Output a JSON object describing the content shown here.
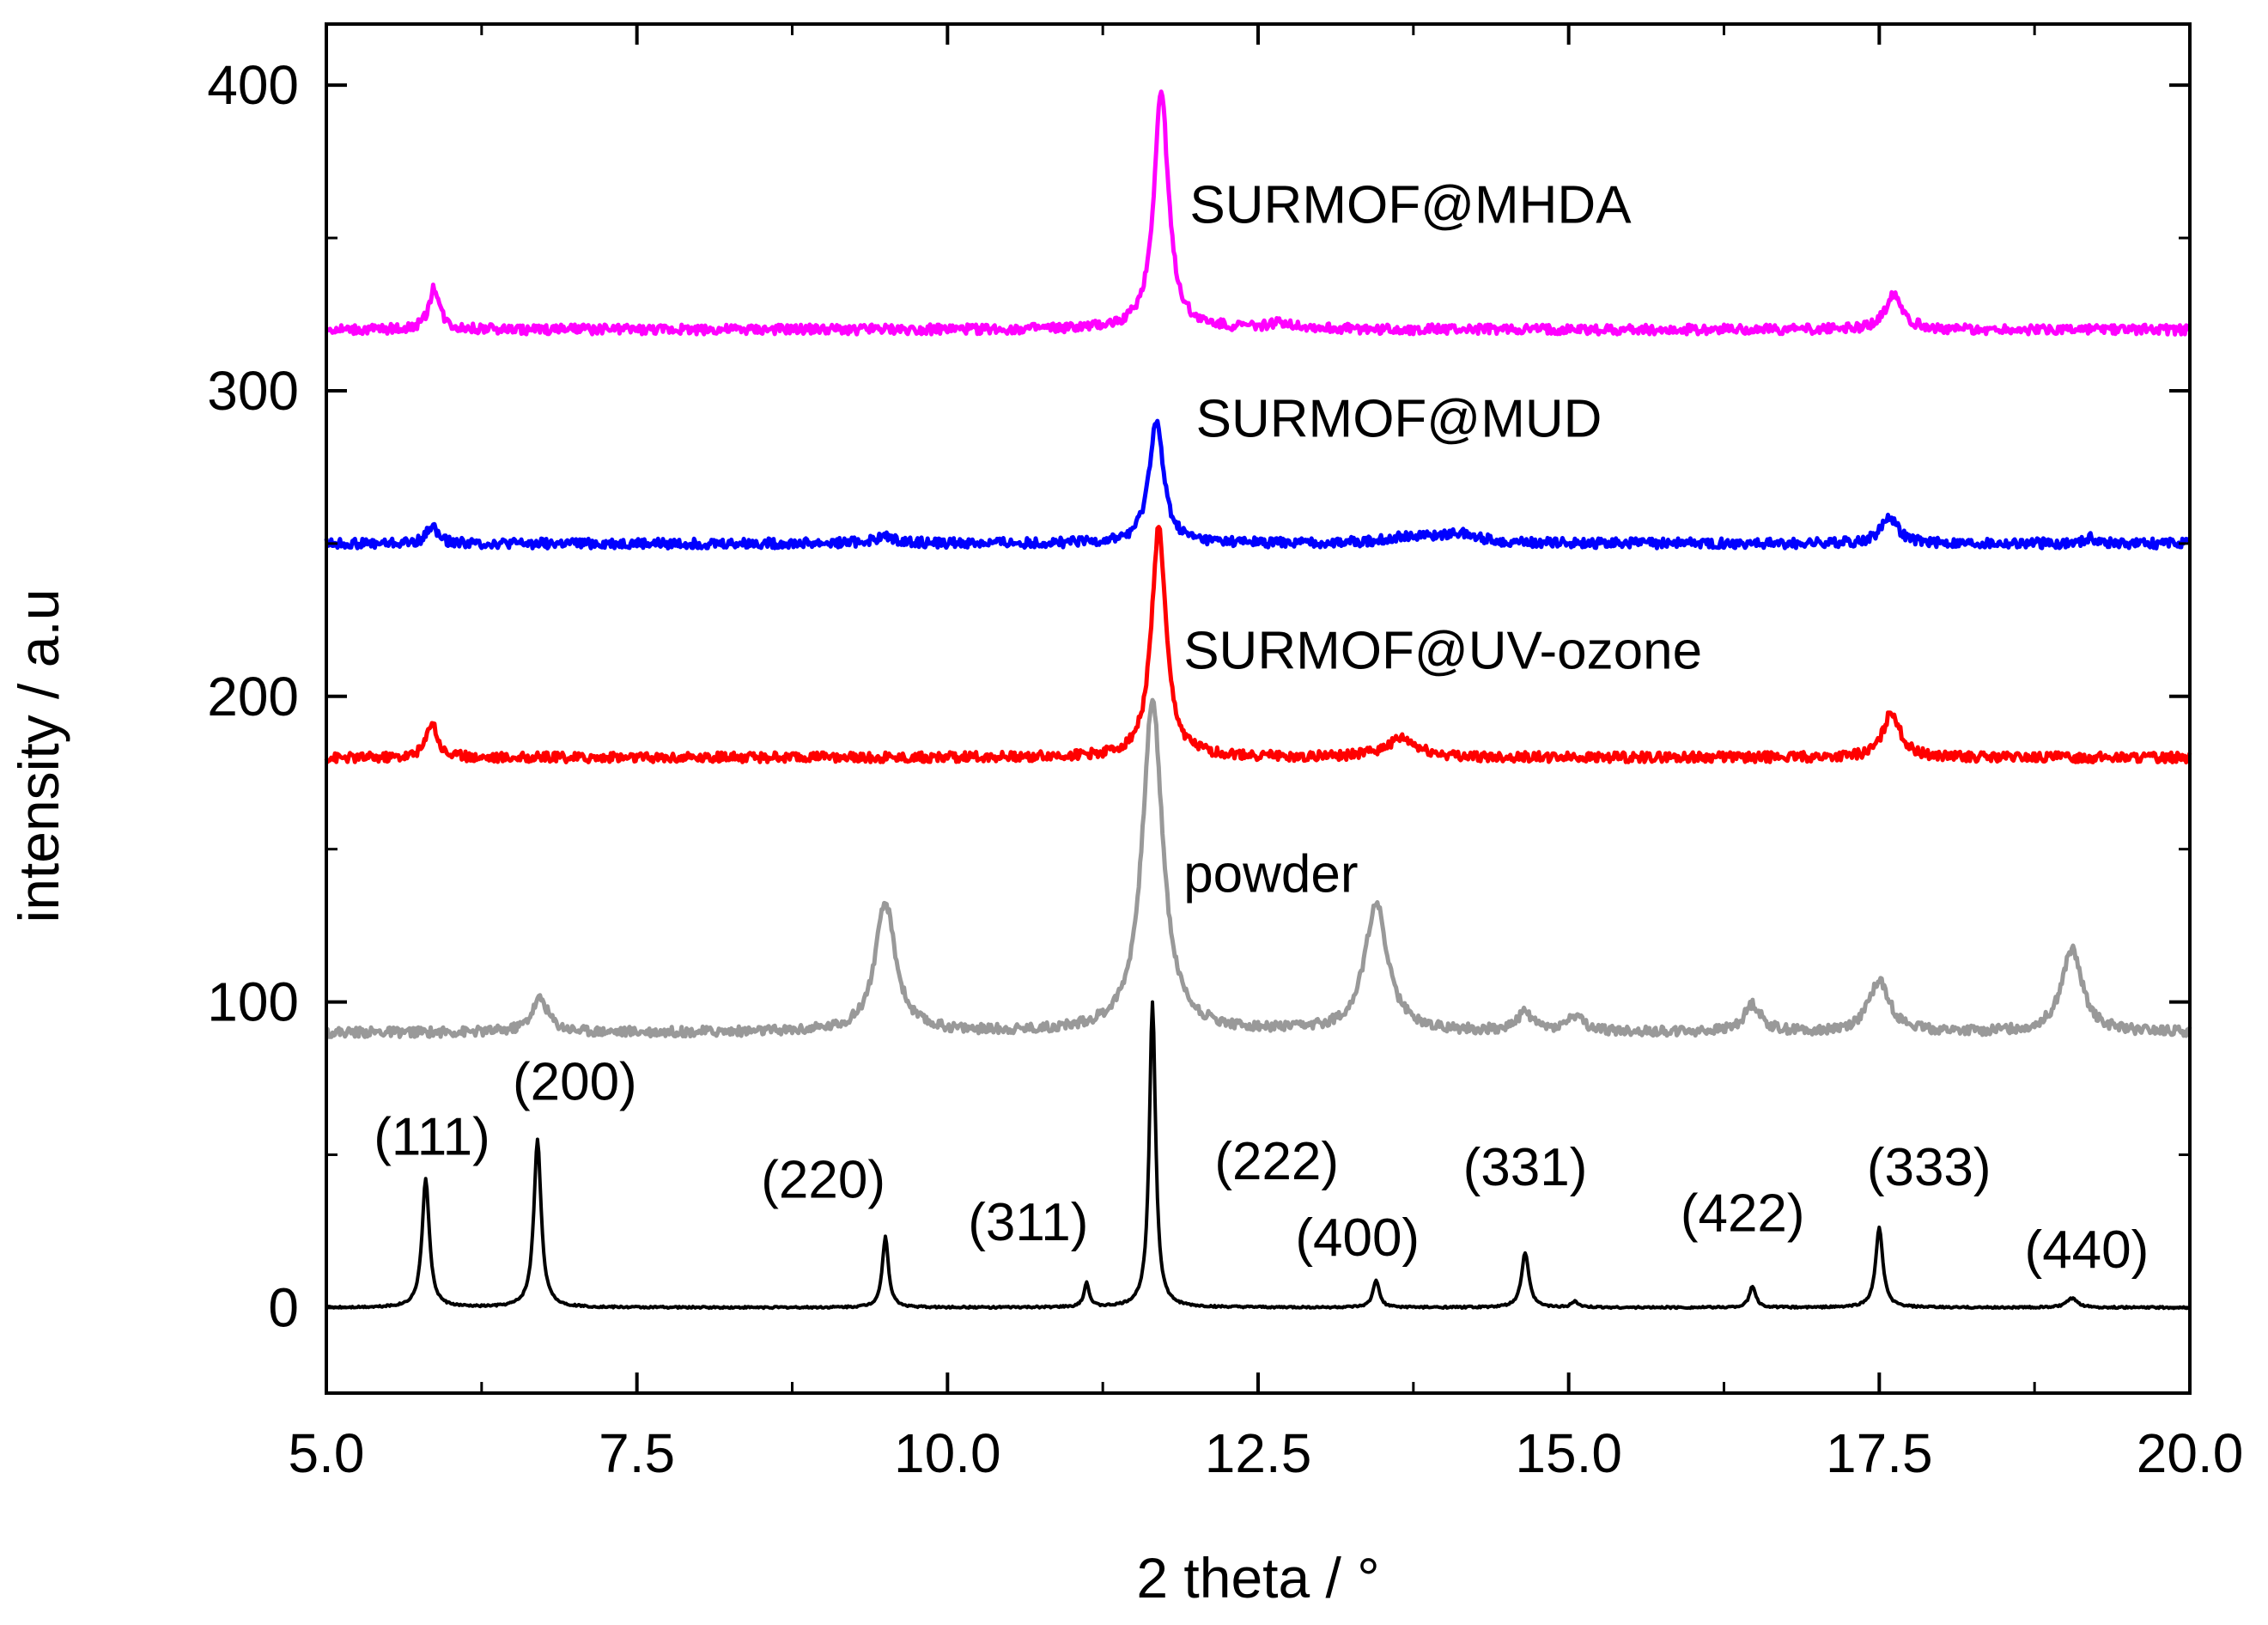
{
  "chart_data": {
    "type": "line",
    "title": "",
    "xlabel": "2 theta / °",
    "ylabel": "intensity / a.u",
    "xlim": [
      5.0,
      20.0
    ],
    "ylim": [
      -28,
      420
    ],
    "x_ticks": [
      "5.0",
      "7.5",
      "10.0",
      "12.5",
      "15.0",
      "17.5",
      "20.0"
    ],
    "x_tick_values": [
      5.0,
      7.5,
      10.0,
      12.5,
      15.0,
      17.5,
      20.0
    ],
    "y_ticks": [
      "0",
      "100",
      "200",
      "300",
      "400"
    ],
    "y_tick_values": [
      0,
      100,
      200,
      300,
      400
    ],
    "grid": false,
    "legend": "none",
    "series": [
      {
        "name": "SURMOF@MHDA",
        "color": "#ff00ff",
        "baseline": 320,
        "peaks": [
          [
            5.87,
            14,
            0.05
          ],
          [
            11.72,
            78,
            0.07
          ],
          [
            12.7,
            2,
            0.15
          ],
          [
            17.62,
            12,
            0.08
          ]
        ]
      },
      {
        "name": "SURMOF@MUD",
        "color": "#0000ff",
        "baseline": 250,
        "peaks": [
          [
            5.85,
            6,
            0.05
          ],
          [
            9.5,
            2,
            0.12
          ],
          [
            11.68,
            40,
            0.07
          ],
          [
            13.7,
            2,
            0.2
          ],
          [
            14.1,
            3,
            0.2
          ],
          [
            17.58,
            9,
            0.08
          ],
          [
            19.2,
            2,
            0.05
          ]
        ]
      },
      {
        "name": "SURMOF@UV-ozone",
        "color": "#ff0000",
        "baseline": 180,
        "peaks": [
          [
            5.85,
            12,
            0.05
          ],
          [
            11.7,
            75,
            0.07
          ],
          [
            13.65,
            6,
            0.15
          ],
          [
            17.6,
            15,
            0.08
          ]
        ]
      },
      {
        "name": "powder",
        "color": "#999999",
        "baseline": 90,
        "peaks": [
          [
            6.72,
            11,
            0.08
          ],
          [
            9.5,
            42,
            0.1
          ],
          [
            11.65,
            108,
            0.1
          ],
          [
            13.45,
            42,
            0.11
          ],
          [
            14.65,
            6,
            0.08
          ],
          [
            15.05,
            5,
            0.08
          ],
          [
            16.48,
            9,
            0.08
          ],
          [
            17.5,
            17,
            0.1
          ],
          [
            19.05,
            27,
            0.1
          ]
        ]
      },
      {
        "name": "",
        "color": "#000000",
        "baseline": 0,
        "peaks": [
          [
            5.8,
            42,
            0.035
          ],
          [
            6.7,
            55,
            0.035
          ],
          [
            9.5,
            23,
            0.03
          ],
          [
            11.12,
            8,
            0.025
          ],
          [
            11.65,
            100,
            0.03
          ],
          [
            13.45,
            9,
            0.03
          ],
          [
            14.65,
            18,
            0.035
          ],
          [
            15.05,
            2,
            0.03
          ],
          [
            16.48,
            7,
            0.03
          ],
          [
            17.5,
            26,
            0.035
          ],
          [
            19.05,
            3,
            0.05
          ]
        ]
      }
    ],
    "series_labels": [
      {
        "text": "SURMOF@MHDA",
        "x": 11.95,
        "y": 355,
        "color": "#000000"
      },
      {
        "text": "SURMOF@MUD",
        "x": 12.0,
        "y": 285,
        "color": "#000000"
      },
      {
        "text": "SURMOF@UV-ozone",
        "x": 11.9,
        "y": 209,
        "color": "#000000"
      },
      {
        "text": "powder",
        "x": 11.9,
        "y": 136,
        "color": "#000000"
      }
    ],
    "annotations": [
      {
        "text": "(111)",
        "x": 5.85,
        "y": 50
      },
      {
        "text": "(200)",
        "x": 7.0,
        "y": 68
      },
      {
        "text": "(220)",
        "x": 9.0,
        "y": 36
      },
      {
        "text": "(311)",
        "x": 10.65,
        "y": 22
      },
      {
        "text": "(222)",
        "x": 12.65,
        "y": 42
      },
      {
        "text": "(400)",
        "x": 13.3,
        "y": 17
      },
      {
        "text": "(331)",
        "x": 14.65,
        "y": 40
      },
      {
        "text": "(422)",
        "x": 16.4,
        "y": 25
      },
      {
        "text": "(333)",
        "x": 17.9,
        "y": 40
      },
      {
        "text": "(440)",
        "x": 19.17,
        "y": 13
      }
    ]
  }
}
